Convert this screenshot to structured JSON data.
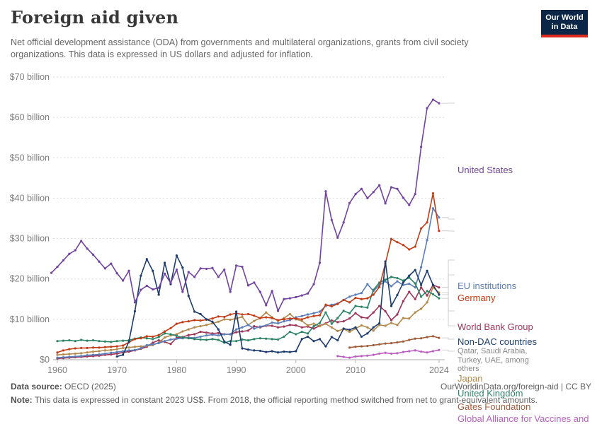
{
  "brand": {
    "navy": "#0b2647",
    "red": "#dc2a1f"
  },
  "header": {
    "title": "Foreign aid given",
    "subtitle": "Net official development assistance (ODA) from governments and multilateral organizations, grants from civil society organizations. This data is expressed in US dollars and adjusted for inflation.",
    "logo": {
      "line1": "Our World",
      "line2": "in Data"
    }
  },
  "chart_data": {
    "type": "line",
    "title": "Foreign aid given",
    "unit": "US dollars, constant 2023 prices",
    "x_range": [
      1959,
      2024
    ],
    "ylim": [
      0,
      70
    ],
    "grid": "dashed horizontal",
    "legend_position": "right edge, line-end labels",
    "y_ticks": [
      {
        "value": 0,
        "label": "$0"
      },
      {
        "value": 10,
        "label": "$10 billion"
      },
      {
        "value": 20,
        "label": "$20 billion"
      },
      {
        "value": 30,
        "label": "$30 billion"
      },
      {
        "value": 40,
        "label": "$40 billion"
      },
      {
        "value": 50,
        "label": "$50 billion"
      },
      {
        "value": 60,
        "label": "$60 billion"
      },
      {
        "value": 70,
        "label": "$70 billion"
      }
    ],
    "x_ticks": [
      1960,
      1970,
      1980,
      1990,
      2000,
      2010,
      2024
    ],
    "non_dac_note": "Qatar, Saudi Arabia, Turkey, UAE, among others",
    "series": [
      {
        "name": "United States",
        "color": "#7243a0",
        "start_year": 1959,
        "values": [
          21.5,
          23.0,
          24.6,
          26.2,
          27.1,
          29.4,
          27.5,
          26.0,
          24.3,
          22.6,
          23.8,
          21.4,
          19.6,
          22.0,
          14.2,
          17.3,
          18.3,
          17.4,
          17.8,
          21.3,
          19.0,
          22.3,
          16.8,
          21.7,
          20.5,
          22.6,
          22.5,
          22.7,
          20.5,
          22.3,
          16.8,
          23.3,
          23.0,
          18.4,
          19.1,
          16.8,
          13.5,
          17.0,
          12.1,
          15.0,
          15.2,
          15.5,
          15.9,
          16.4,
          18.7,
          24.0,
          41.7,
          34.6,
          30.2,
          34.0,
          38.8,
          41.0,
          42.3,
          40.0,
          41.5,
          43.2,
          38.7,
          42.7,
          42.3,
          40.1,
          38.3,
          41.0,
          52.7,
          62.3,
          64.4,
          63.5
        ]
      },
      {
        "name": "EU institutions",
        "color": "#5b7db8",
        "start_year": 1960,
        "values": [
          0.5,
          0.6,
          0.7,
          0.8,
          0.9,
          1.1,
          1.2,
          1.3,
          1.5,
          1.7,
          1.9,
          2.1,
          2.3,
          2.4,
          2.8,
          3.6,
          3.8,
          4.1,
          4.6,
          5.0,
          5.2,
          5.3,
          5.5,
          5.4,
          5.7,
          6.0,
          6.2,
          6.0,
          6.3,
          6.3,
          7.5,
          8.0,
          8.6,
          7.7,
          8.2,
          8.5,
          9.2,
          9.0,
          9.5,
          9.8,
          10.5,
          10.8,
          11.2,
          11.5,
          11.9,
          13.3,
          13.6,
          13.9,
          14.8,
          15.6,
          16.1,
          16.5,
          18.7,
          17.0,
          18.5,
          19.4,
          18.2,
          19.4,
          18.5,
          18.8,
          17.9,
          22.9,
          29.6,
          37.5,
          35.2
        ]
      },
      {
        "name": "Germany",
        "color": "#c43c16",
        "start_year": 1960,
        "values": [
          1.8,
          2.3,
          2.6,
          2.8,
          2.9,
          2.9,
          3.0,
          3.0,
          3.1,
          3.2,
          3.3,
          3.5,
          4.3,
          5.1,
          5.3,
          5.8,
          5.7,
          6.1,
          7.0,
          7.8,
          8.9,
          9.3,
          9.5,
          9.8,
          9.7,
          9.9,
          10.2,
          10.7,
          10.6,
          11.2,
          11.5,
          11.2,
          11.3,
          10.9,
          10.3,
          10.5,
          10.3,
          9.8,
          10.0,
          10.2,
          10.2,
          10.0,
          10.5,
          10.8,
          11.0,
          13.6,
          13.2,
          13.8,
          14.8,
          14.2,
          15.3,
          15.0,
          15.2,
          16.1,
          18.0,
          23.8,
          29.9,
          29.1,
          28.4,
          27.3,
          28.0,
          32.5,
          34.0,
          41.2,
          31.9
        ]
      },
      {
        "name": "World Bank Group",
        "color": "#9e3456",
        "start_year": 1960,
        "values": [
          0.3,
          0.4,
          0.5,
          0.6,
          0.7,
          0.8,
          0.9,
          1.0,
          1.2,
          1.3,
          1.5,
          1.8,
          2.0,
          2.3,
          2.7,
          3.2,
          4.2,
          4.8,
          4.4,
          3.9,
          5.4,
          5.6,
          6.1,
          6.3,
          6.9,
          6.7,
          6.5,
          6.6,
          6.3,
          6.3,
          6.8,
          7.0,
          7.2,
          8.3,
          8.0,
          8.4,
          8.4,
          8.0,
          8.2,
          8.6,
          8.5,
          8.0,
          8.2,
          7.7,
          8.4,
          9.0,
          9.7,
          9.3,
          9.5,
          10.2,
          11.5,
          10.5,
          10.3,
          11.7,
          13.3,
          12.0,
          9.8,
          11.2,
          14.5,
          16.8,
          15.0,
          17.9,
          15.9,
          18.5,
          17.9
        ]
      },
      {
        "name": "Non-DAC countries",
        "color": "#1d3d6e",
        "start_year": 1970,
        "values": [
          0.8,
          1.2,
          4.5,
          12.0,
          20.8,
          24.9,
          22.0,
          16.1,
          24.0,
          18.7,
          25.8,
          22.8,
          15.8,
          11.9,
          11.3,
          10.0,
          9.4,
          7.5,
          4.5,
          3.7,
          11.9,
          2.8,
          2.5,
          2.3,
          2.2,
          1.9,
          2.1,
          1.8,
          2.0,
          1.9,
          2.1,
          5.1,
          5.7,
          4.6,
          5.1,
          3.3,
          5.6,
          4.8,
          7.7,
          7.4,
          8.0,
          5.7,
          6.5,
          8.0,
          9.0,
          24.3,
          13.3,
          16.0,
          19.1,
          20.8,
          22.2,
          18.5,
          22.0,
          18.5,
          16.1
        ]
      },
      {
        "name": "Japan",
        "color": "#b3884a",
        "start_year": 1960,
        "values": [
          1.2,
          1.3,
          1.4,
          1.5,
          1.6,
          1.8,
          2.0,
          2.1,
          2.3,
          2.4,
          2.6,
          2.9,
          3.0,
          3.2,
          3.3,
          3.4,
          3.6,
          4.2,
          5.5,
          6.0,
          6.3,
          7.0,
          7.5,
          8.0,
          8.3,
          8.6,
          9.0,
          9.4,
          10.0,
          9.9,
          10.2,
          10.6,
          8.6,
          9.6,
          10.3,
          11.7,
          10.5,
          9.6,
          10.3,
          11.3,
          10.0,
          9.6,
          8.5,
          8.9,
          8.3,
          8.9,
          8.0,
          7.1,
          7.6,
          6.9,
          7.7,
          8.5,
          8.0,
          7.2,
          8.6,
          8.4,
          9.1,
          8.6,
          10.3,
          10.2,
          11.7,
          12.6,
          14.2,
          17.9,
          16.6
        ]
      },
      {
        "name": "United Kingdom",
        "color": "#2c8465",
        "start_year": 1960,
        "values": [
          4.6,
          4.7,
          4.8,
          4.6,
          4.9,
          4.7,
          4.8,
          4.6,
          4.5,
          4.4,
          4.6,
          4.7,
          4.8,
          5.2,
          5.5,
          5.3,
          5.1,
          5.6,
          6.5,
          6.3,
          5.9,
          5.5,
          5.3,
          5.1,
          5.0,
          4.9,
          5.1,
          4.9,
          4.2,
          4.6,
          4.6,
          5.0,
          4.8,
          5.1,
          5.3,
          5.2,
          5.1,
          5.0,
          5.7,
          6.9,
          6.3,
          6.9,
          6.5,
          8.3,
          9.1,
          11.7,
          8.9,
          10.3,
          12.1,
          11.5,
          13.3,
          13.1,
          12.9,
          17.3,
          19.1,
          19.8,
          20.5,
          20.2,
          19.6,
          20.3,
          18.9,
          15.6,
          17.0,
          16.2,
          15.2
        ]
      },
      {
        "name": "Gates Foundation",
        "color": "#a05d3b",
        "start_year": 2009,
        "values": [
          3.0,
          3.2,
          3.3,
          3.4,
          3.6,
          3.8,
          4.0,
          4.1,
          4.3,
          4.5,
          4.9,
          5.2,
          5.3,
          5.6,
          5.8,
          5.4
        ]
      },
      {
        "name": "Global Alliance for Vaccines and Immunization",
        "color": "#bb5fc3",
        "start_year": 2007,
        "values": [
          0.9,
          0.7,
          0.5,
          0.8,
          0.9,
          1.0,
          1.2,
          1.5,
          1.7,
          1.5,
          1.6,
          1.9,
          2.1,
          2.3,
          2.0,
          1.8,
          2.1,
          2.4
        ]
      }
    ]
  },
  "footer": {
    "source_label": "Data source:",
    "source_value": " OECD (2025)",
    "link": "OurWorldinData.org/foreign-aid | CC BY",
    "note_label": "Note:",
    "note_value": " This data is expressed in constant 2023 US$. From 2018, the official reporting method switched from net to grant-equivalent amounts."
  }
}
